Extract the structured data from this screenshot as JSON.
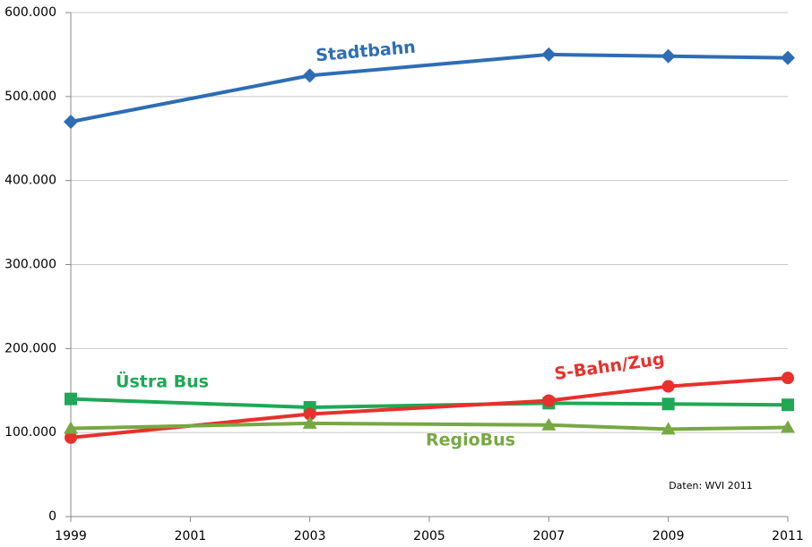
{
  "chart_data": {
    "type": "line",
    "x": [
      1999,
      2003,
      2007,
      2009,
      2011
    ],
    "xlim": [
      1999,
      2011
    ],
    "xticks": [
      1999,
      2001,
      2003,
      2005,
      2007,
      2009,
      2011
    ],
    "ylim": [
      0,
      600000
    ],
    "yticks": [
      0,
      {
        "value": 100000,
        "label": "100.000"
      },
      {
        "value": 200000,
        "label": "200.000"
      },
      {
        "value": 300000,
        "label": "300.000"
      },
      {
        "value": 400000,
        "label": "400.000"
      },
      {
        "value": 500000,
        "label": "500.000"
      },
      {
        "value": 600000,
        "label": "600.000"
      }
    ],
    "grid": true,
    "series": [
      {
        "name": "Stadtbahn",
        "color": "#2e6db4",
        "marker": "diamond",
        "values": [
          470000,
          525000,
          550000,
          548000,
          546000
        ]
      },
      {
        "name": "Üstra Bus",
        "color": "#1fa855",
        "marker": "square",
        "values": [
          140000,
          130000,
          135000,
          134000,
          133000
        ]
      },
      {
        "name": "S-Bahn/Zug",
        "color": "#e8302c",
        "marker": "circle",
        "values": [
          94000,
          122000,
          138000,
          155000,
          165000
        ]
      },
      {
        "name": "RegioBus",
        "color": "#77a843",
        "marker": "triangle",
        "values": [
          105000,
          111000,
          109000,
          104000,
          106000
        ]
      }
    ],
    "annotation": "Daten: WVI 2011"
  }
}
